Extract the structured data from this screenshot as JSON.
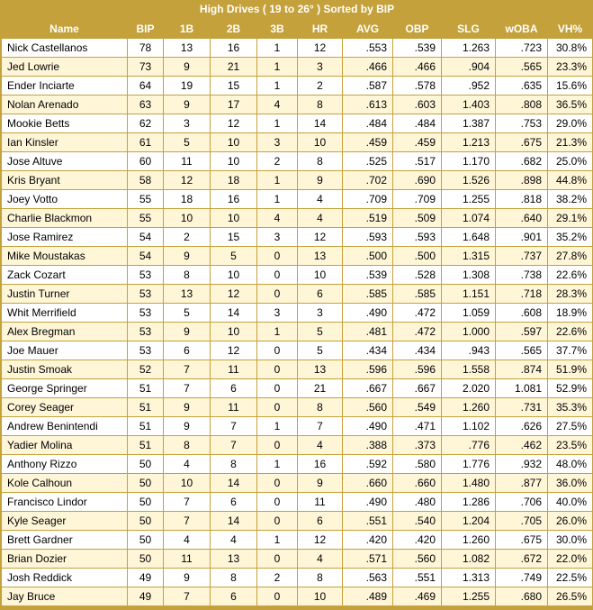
{
  "title": "High Drives ( 19 to 26° ) Sorted by BIP",
  "columns": [
    "Name",
    "BIP",
    "1B",
    "2B",
    "3B",
    "HR",
    "AVG",
    "OBP",
    "SLG",
    "wOBA",
    "VH%"
  ],
  "rows": [
    [
      "Nick Castellanos",
      "78",
      "13",
      "16",
      "1",
      "12",
      ".553",
      ".539",
      "1.263",
      ".723",
      "30.8%"
    ],
    [
      "Jed Lowrie",
      "73",
      "9",
      "21",
      "1",
      "3",
      ".466",
      ".466",
      ".904",
      ".565",
      "23.3%"
    ],
    [
      "Ender Inciarte",
      "64",
      "19",
      "15",
      "1",
      "2",
      ".587",
      ".578",
      ".952",
      ".635",
      "15.6%"
    ],
    [
      "Nolan Arenado",
      "63",
      "9",
      "17",
      "4",
      "8",
      ".613",
      ".603",
      "1.403",
      ".808",
      "36.5%"
    ],
    [
      "Mookie Betts",
      "62",
      "3",
      "12",
      "1",
      "14",
      ".484",
      ".484",
      "1.387",
      ".753",
      "29.0%"
    ],
    [
      "Ian Kinsler",
      "61",
      "5",
      "10",
      "3",
      "10",
      ".459",
      ".459",
      "1.213",
      ".675",
      "21.3%"
    ],
    [
      "Jose Altuve",
      "60",
      "11",
      "10",
      "2",
      "8",
      ".525",
      ".517",
      "1.170",
      ".682",
      "25.0%"
    ],
    [
      "Kris Bryant",
      "58",
      "12",
      "18",
      "1",
      "9",
      ".702",
      ".690",
      "1.526",
      ".898",
      "44.8%"
    ],
    [
      "Joey Votto",
      "55",
      "18",
      "16",
      "1",
      "4",
      ".709",
      ".709",
      "1.255",
      ".818",
      "38.2%"
    ],
    [
      "Charlie Blackmon",
      "55",
      "10",
      "10",
      "4",
      "4",
      ".519",
      ".509",
      "1.074",
      ".640",
      "29.1%"
    ],
    [
      "Jose Ramirez",
      "54",
      "2",
      "15",
      "3",
      "12",
      ".593",
      ".593",
      "1.648",
      ".901",
      "35.2%"
    ],
    [
      "Mike Moustakas",
      "54",
      "9",
      "5",
      "0",
      "13",
      ".500",
      ".500",
      "1.315",
      ".737",
      "27.8%"
    ],
    [
      "Zack Cozart",
      "53",
      "8",
      "10",
      "0",
      "10",
      ".539",
      ".528",
      "1.308",
      ".738",
      "22.6%"
    ],
    [
      "Justin Turner",
      "53",
      "13",
      "12",
      "0",
      "6",
      ".585",
      ".585",
      "1.151",
      ".718",
      "28.3%"
    ],
    [
      "Whit Merrifield",
      "53",
      "5",
      "14",
      "3",
      "3",
      ".490",
      ".472",
      "1.059",
      ".608",
      "18.9%"
    ],
    [
      "Alex Bregman",
      "53",
      "9",
      "10",
      "1",
      "5",
      ".481",
      ".472",
      "1.000",
      ".597",
      "22.6%"
    ],
    [
      "Joe Mauer",
      "53",
      "6",
      "12",
      "0",
      "5",
      ".434",
      ".434",
      ".943",
      ".565",
      "37.7%"
    ],
    [
      "Justin Smoak",
      "52",
      "7",
      "11",
      "0",
      "13",
      ".596",
      ".596",
      "1.558",
      ".874",
      "51.9%"
    ],
    [
      "George Springer",
      "51",
      "7",
      "6",
      "0",
      "21",
      ".667",
      ".667",
      "2.020",
      "1.081",
      "52.9%"
    ],
    [
      "Corey Seager",
      "51",
      "9",
      "11",
      "0",
      "8",
      ".560",
      ".549",
      "1.260",
      ".731",
      "35.3%"
    ],
    [
      "Andrew Benintendi",
      "51",
      "9",
      "7",
      "1",
      "7",
      ".490",
      ".471",
      "1.102",
      ".626",
      "27.5%"
    ],
    [
      "Yadier Molina",
      "51",
      "8",
      "7",
      "0",
      "4",
      ".388",
      ".373",
      ".776",
      ".462",
      "23.5%"
    ],
    [
      "Anthony Rizzo",
      "50",
      "4",
      "8",
      "1",
      "16",
      ".592",
      ".580",
      "1.776",
      ".932",
      "48.0%"
    ],
    [
      "Kole Calhoun",
      "50",
      "10",
      "14",
      "0",
      "9",
      ".660",
      ".660",
      "1.480",
      ".877",
      "36.0%"
    ],
    [
      "Francisco Lindor",
      "50",
      "7",
      "6",
      "0",
      "11",
      ".490",
      ".480",
      "1.286",
      ".706",
      "40.0%"
    ],
    [
      "Kyle Seager",
      "50",
      "7",
      "14",
      "0",
      "6",
      ".551",
      ".540",
      "1.204",
      ".705",
      "26.0%"
    ],
    [
      "Brett Gardner",
      "50",
      "4",
      "4",
      "1",
      "12",
      ".420",
      ".420",
      "1.260",
      ".675",
      "30.0%"
    ],
    [
      "Brian Dozier",
      "50",
      "11",
      "13",
      "0",
      "4",
      ".571",
      ".560",
      "1.082",
      ".672",
      "22.0%"
    ],
    [
      "Josh Reddick",
      "49",
      "9",
      "8",
      "2",
      "8",
      ".563",
      ".551",
      "1.313",
      ".749",
      "22.5%"
    ],
    [
      "Jay Bruce",
      "49",
      "7",
      "6",
      "0",
      "10",
      ".489",
      ".469",
      "1.255",
      ".680",
      "26.5%"
    ]
  ],
  "colors": {
    "header_bg": "#c4a13a",
    "header_text": "#ffffff",
    "row_odd": "#ffffff",
    "row_even": "#fff6d8"
  }
}
